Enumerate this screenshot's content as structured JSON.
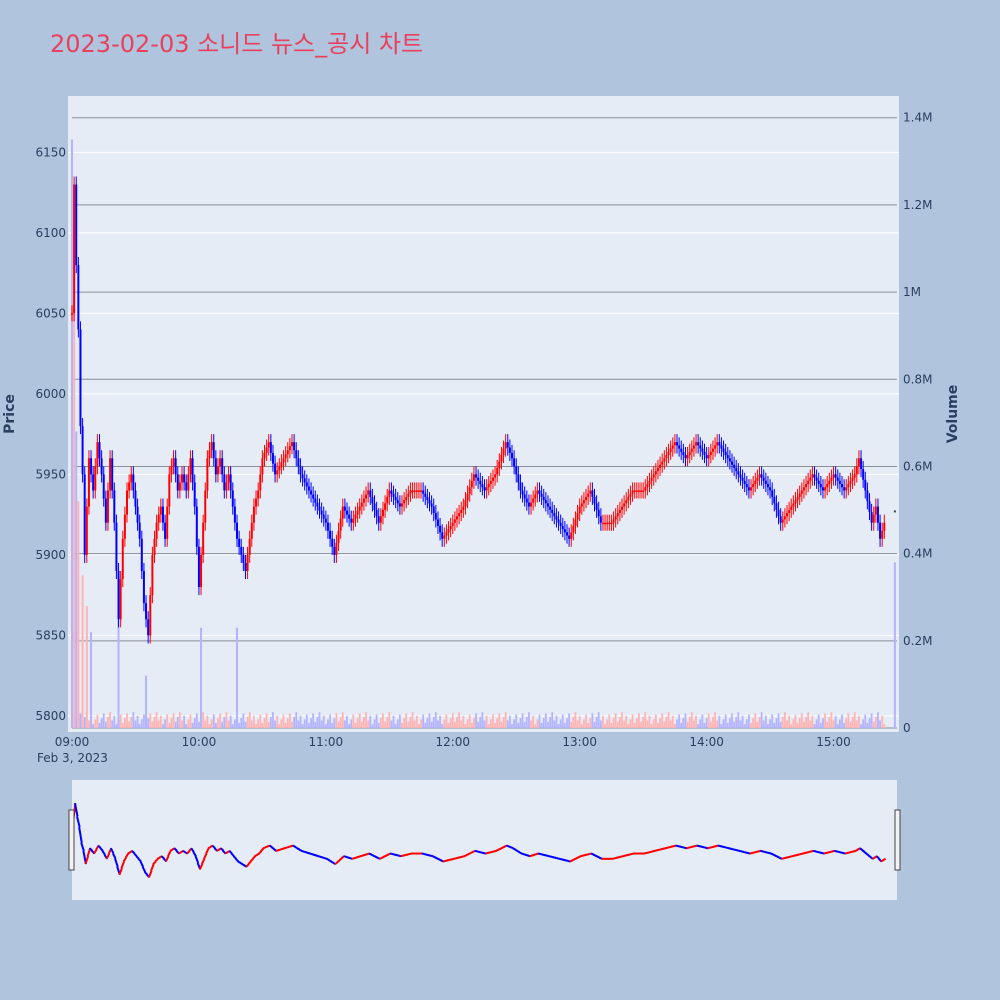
{
  "chart_data": {
    "type": "candlestick",
    "title": "2023-02-03 소니드 뉴스_공시 차트",
    "date_label": "Feb 3, 2023",
    "y_label": "Price",
    "y2_label": "Volume",
    "x_range": [
      "09:00",
      "15:30"
    ],
    "y_range": [
      5790,
      6185
    ],
    "y_ticks": [
      5800,
      5850,
      5900,
      5950,
      6000,
      6050,
      6100,
      6150
    ],
    "y2_range": [
      0,
      1420000
    ],
    "y2_ticks": [
      {
        "value": 0,
        "label": "0"
      },
      {
        "value": 200000,
        "label": "0.2M"
      },
      {
        "value": 400000,
        "label": "0.4M"
      },
      {
        "value": 600000,
        "label": "0.6M"
      },
      {
        "value": 800000,
        "label": "0.8M"
      },
      {
        "value": 1000000,
        "label": "1M"
      },
      {
        "value": 1200000,
        "label": "1.2M"
      },
      {
        "value": 1400000,
        "label": "1.4M"
      }
    ],
    "x_ticks": [
      "09:00",
      "10:00",
      "11:00",
      "12:00",
      "13:00",
      "14:00",
      "15:00"
    ],
    "colors": {
      "up": "#ff0000",
      "down": "#0000ff",
      "up_volume": "#ffb3b3",
      "down_volume": "#b3b3ff"
    },
    "price_path": [
      [
        "09:00",
        6050
      ],
      [
        "09:01",
        6130
      ],
      [
        "09:02",
        6080
      ],
      [
        "09:03",
        6040
      ],
      [
        "09:04",
        5980
      ],
      [
        "09:05",
        5950
      ],
      [
        "09:06",
        5900
      ],
      [
        "09:07",
        5930
      ],
      [
        "09:08",
        5960
      ],
      [
        "09:10",
        5940
      ],
      [
        "09:12",
        5970
      ],
      [
        "09:14",
        5950
      ],
      [
        "09:16",
        5920
      ],
      [
        "09:18",
        5960
      ],
      [
        "09:20",
        5920
      ],
      [
        "09:22",
        5860
      ],
      [
        "09:24",
        5910
      ],
      [
        "09:26",
        5940
      ],
      [
        "09:28",
        5950
      ],
      [
        "09:30",
        5930
      ],
      [
        "09:32",
        5910
      ],
      [
        "09:34",
        5870
      ],
      [
        "09:36",
        5850
      ],
      [
        "09:38",
        5900
      ],
      [
        "09:40",
        5920
      ],
      [
        "09:42",
        5930
      ],
      [
        "09:44",
        5910
      ],
      [
        "09:46",
        5950
      ],
      [
        "09:48",
        5960
      ],
      [
        "09:50",
        5940
      ],
      [
        "09:52",
        5950
      ],
      [
        "09:54",
        5940
      ],
      [
        "09:56",
        5960
      ],
      [
        "09:58",
        5930
      ],
      [
        "10:00",
        5880
      ],
      [
        "10:02",
        5920
      ],
      [
        "10:04",
        5960
      ],
      [
        "10:06",
        5970
      ],
      [
        "10:08",
        5950
      ],
      [
        "10:10",
        5960
      ],
      [
        "10:12",
        5940
      ],
      [
        "10:14",
        5950
      ],
      [
        "10:16",
        5930
      ],
      [
        "10:18",
        5910
      ],
      [
        "10:20",
        5900
      ],
      [
        "10:22",
        5890
      ],
      [
        "10:24",
        5910
      ],
      [
        "10:26",
        5930
      ],
      [
        "10:28",
        5940
      ],
      [
        "10:30",
        5960
      ],
      [
        "10:33",
        5970
      ],
      [
        "10:36",
        5950
      ],
      [
        "10:40",
        5960
      ],
      [
        "10:44",
        5970
      ],
      [
        "10:48",
        5950
      ],
      [
        "10:52",
        5940
      ],
      [
        "10:56",
        5930
      ],
      [
        "11:00",
        5920
      ],
      [
        "11:04",
        5900
      ],
      [
        "11:08",
        5930
      ],
      [
        "11:12",
        5920
      ],
      [
        "11:16",
        5930
      ],
      [
        "11:20",
        5940
      ],
      [
        "11:25",
        5920
      ],
      [
        "11:30",
        5940
      ],
      [
        "11:35",
        5930
      ],
      [
        "11:40",
        5940
      ],
      [
        "11:45",
        5940
      ],
      [
        "11:50",
        5930
      ],
      [
        "11:55",
        5910
      ],
      [
        "12:00",
        5920
      ],
      [
        "12:05",
        5930
      ],
      [
        "12:10",
        5950
      ],
      [
        "12:15",
        5940
      ],
      [
        "12:20",
        5950
      ],
      [
        "12:25",
        5970
      ],
      [
        "12:28",
        5960
      ],
      [
        "12:32",
        5940
      ],
      [
        "12:36",
        5930
      ],
      [
        "12:40",
        5940
      ],
      [
        "12:45",
        5930
      ],
      [
        "12:50",
        5920
      ],
      [
        "12:55",
        5910
      ],
      [
        "13:00",
        5930
      ],
      [
        "13:05",
        5940
      ],
      [
        "13:10",
        5920
      ],
      [
        "13:15",
        5920
      ],
      [
        "13:20",
        5930
      ],
      [
        "13:25",
        5940
      ],
      [
        "13:30",
        5940
      ],
      [
        "13:35",
        5950
      ],
      [
        "13:40",
        5960
      ],
      [
        "13:45",
        5970
      ],
      [
        "13:50",
        5960
      ],
      [
        "13:55",
        5970
      ],
      [
        "14:00",
        5960
      ],
      [
        "14:05",
        5970
      ],
      [
        "14:10",
        5960
      ],
      [
        "14:15",
        5950
      ],
      [
        "14:20",
        5940
      ],
      [
        "14:25",
        5950
      ],
      [
        "14:30",
        5940
      ],
      [
        "14:35",
        5920
      ],
      [
        "14:40",
        5930
      ],
      [
        "14:45",
        5940
      ],
      [
        "14:50",
        5950
      ],
      [
        "14:55",
        5940
      ],
      [
        "15:00",
        5950
      ],
      [
        "15:05",
        5940
      ],
      [
        "15:10",
        5950
      ],
      [
        "15:12",
        5960
      ],
      [
        "15:15",
        5940
      ],
      [
        "15:18",
        5920
      ],
      [
        "15:20",
        5930
      ],
      [
        "15:22",
        5910
      ],
      [
        "15:24",
        5920
      ]
    ],
    "volume_markers": [
      {
        "time": "09:00",
        "volume": 1350000,
        "dir": "down"
      },
      {
        "time": "09:01",
        "volume": 1150000,
        "dir": "up"
      },
      {
        "time": "09:02",
        "volume": 680000,
        "dir": "down"
      },
      {
        "time": "09:03",
        "volume": 520000,
        "dir": "up"
      },
      {
        "time": "09:05",
        "volume": 350000,
        "dir": "up"
      },
      {
        "time": "09:07",
        "volume": 280000,
        "dir": "up"
      },
      {
        "time": "09:09",
        "volume": 220000,
        "dir": "down"
      },
      {
        "time": "09:22",
        "volume": 320000,
        "dir": "down"
      },
      {
        "time": "09:35",
        "volume": 120000,
        "dir": "down"
      },
      {
        "time": "10:01",
        "volume": 230000,
        "dir": "down"
      },
      {
        "time": "10:18",
        "volume": 230000,
        "dir": "down"
      },
      {
        "time": "15:29",
        "volume": 380000,
        "dir": "down"
      }
    ],
    "volume_baseline": 30000,
    "last_marker": {
      "time": "15:29",
      "price": 5927
    }
  }
}
